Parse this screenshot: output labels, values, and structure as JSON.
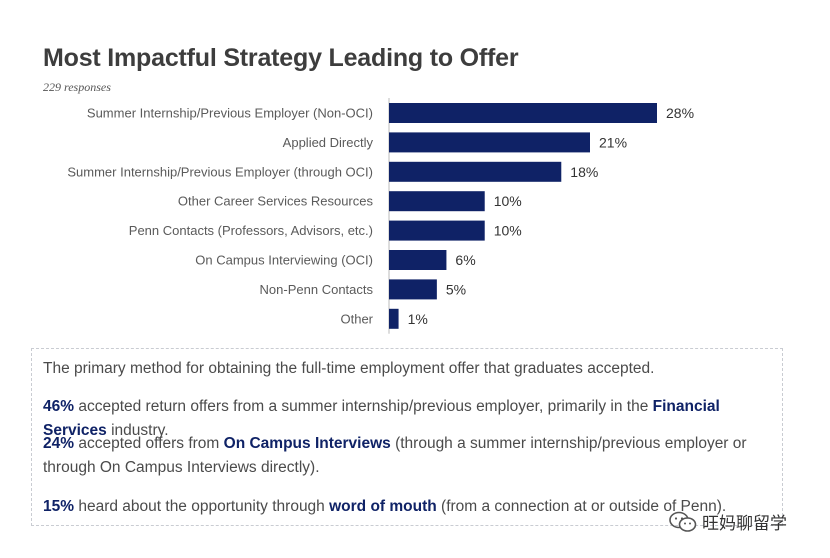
{
  "header": {
    "title": "Most Impactful Strategy Leading to Offer",
    "responses": "229 responses"
  },
  "chart_data": {
    "type": "bar",
    "orientation": "horizontal",
    "categories": [
      "Summer Internship/Previous Employer (Non-OCI)",
      "Applied Directly",
      "Summer Internship/Previous Employer (through OCI)",
      "Other Career Services Resources",
      "Penn Contacts (Professors, Advisors, etc.)",
      "On Campus Interviewing (OCI)",
      "Non-Penn Contacts",
      "Other"
    ],
    "values": [
      28,
      21,
      18,
      10,
      10,
      6,
      5,
      1
    ],
    "value_labels": [
      "28%",
      "21%",
      "18%",
      "10%",
      "10%",
      "6%",
      "5%",
      "1%"
    ],
    "unit": "%",
    "xlim": [
      0,
      30
    ],
    "bar_color": "#0f2266",
    "grid": false
  },
  "summary": {
    "intro": "The primary method for obtaining the full-time employment offer that graduates accepted.",
    "p1": {
      "pct": "46%",
      "text_a": " accepted return offers from a summer internship/previous employer, primarily in the ",
      "highlight": "Financial Services",
      "text_b": " industry."
    },
    "p2": {
      "pct": "24%",
      "text_a": " accepted offers from ",
      "highlight": "On Campus Interviews",
      "text_b": " (through a summer internship/previous employer or through On Campus Interviews directly)."
    },
    "p3": {
      "pct": "15%",
      "text_a": " heard about the opportunity through ",
      "highlight": "word of mouth",
      "text_b": " (from a connection at or outside of Penn)."
    }
  },
  "watermark": {
    "text": "旺妈聊留学",
    "icon": "wechat-icon"
  },
  "colors": {
    "accent": "#0f2266",
    "title": "#3d3d3d",
    "border": "#c9ccd2"
  }
}
